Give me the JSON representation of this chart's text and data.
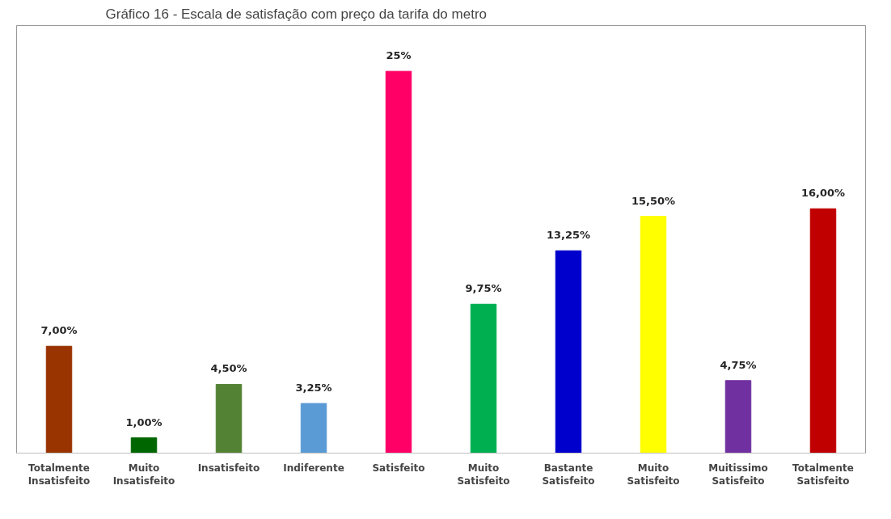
{
  "chart_data": {
    "type": "bar",
    "title": "Gráfico 16 - Escala de satisfação com preço da tarifa do metro",
    "categories": [
      "Totalmente\nInsatisfeito",
      "Muito\nInsatisfeito",
      "Insatisfeito",
      "Indiferente",
      "Satisfeito",
      "Muito\nSatisfeito",
      "Bastante\nSatisfeito",
      "Muito\nSatisfeito",
      "Muitissimo\nSatisfeito",
      "Totalmente\nSatisfeito"
    ],
    "values": [
      7,
      1,
      4.5,
      3.25,
      25,
      9.75,
      13.25,
      15.5,
      4.75,
      16
    ],
    "value_labels": [
      "7,00%",
      "1,00%",
      "4,50%",
      "3,25%",
      "25%",
      "9,75%",
      "13,25%",
      "15,50%",
      "4,75%",
      "16,00%"
    ],
    "colors": [
      "#993300",
      "#006600",
      "#548235",
      "#5b9bd5",
      "#ff0066",
      "#00b050",
      "#0000cc",
      "#ffff00",
      "#7030a0",
      "#c00000"
    ],
    "grid": false
  }
}
